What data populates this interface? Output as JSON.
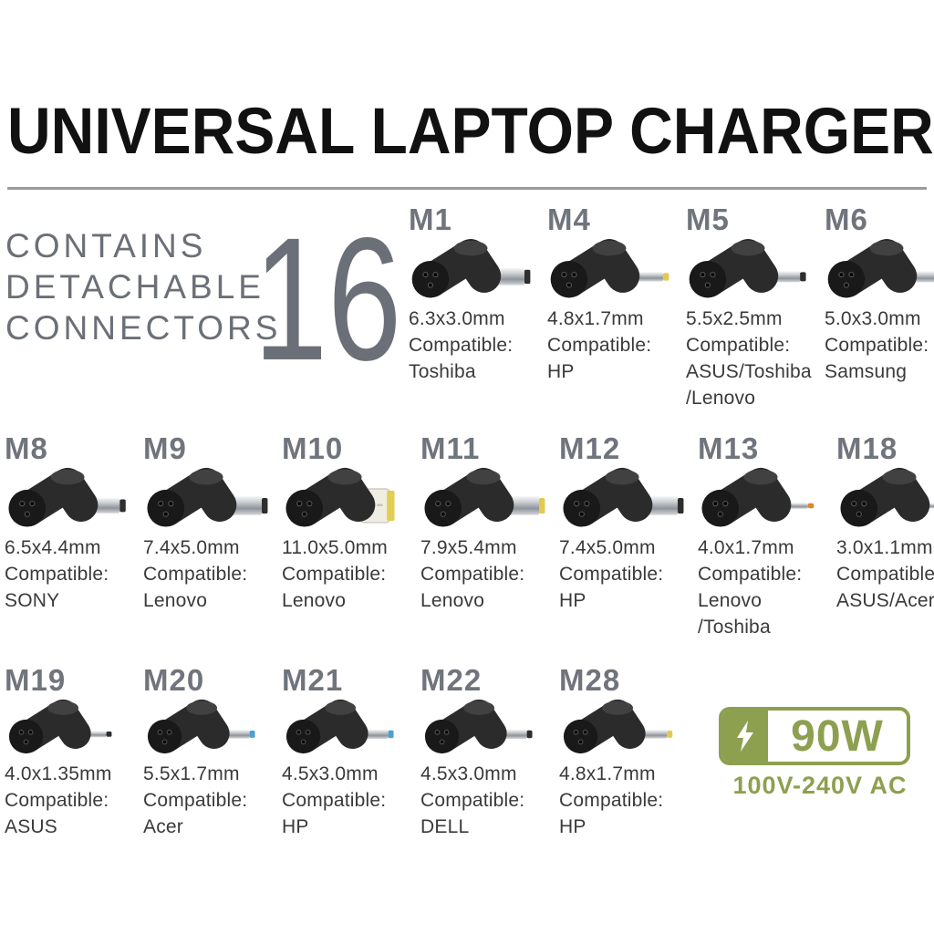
{
  "title": "UNIVERSAL LAPTOP CHARGER",
  "intro": {
    "lines": [
      "CONTAINS",
      "DETACHABLE",
      "CONNECTORS"
    ],
    "count": "16"
  },
  "compat_label": "Compatible:",
  "connectors": [
    {
      "row": 1,
      "model": "M1",
      "size": "6.3x3.0mm",
      "brands": [
        "Toshiba"
      ],
      "plug": {
        "style": "barrel",
        "thickness": 20,
        "length": 46,
        "tip": "#2E2E2E"
      }
    },
    {
      "row": 1,
      "model": "M4",
      "size": "4.8x1.7mm",
      "brands": [
        "HP"
      ],
      "plug": {
        "style": "barrel",
        "thickness": 11,
        "length": 46,
        "tip": "#E5C94E"
      }
    },
    {
      "row": 1,
      "model": "M5",
      "size": "5.5x2.5mm",
      "brands": [
        "ASUS/Toshiba",
        "/Lenovo"
      ],
      "plug": {
        "style": "barrel",
        "thickness": 13,
        "length": 44,
        "tip": "#2E2E2E"
      }
    },
    {
      "row": 1,
      "model": "M6",
      "size": "5.0x3.0mm",
      "brands": [
        "Samsung"
      ],
      "plug": {
        "style": "barrel",
        "thickness": 13,
        "length": 44,
        "tip": "#7B52B8"
      }
    },
    {
      "row": 2,
      "model": "M8",
      "size": "6.5x4.4mm",
      "brands": [
        "SONY"
      ],
      "plug": {
        "style": "barrel",
        "thickness": 18,
        "length": 44,
        "tip": "#2E2E2E"
      }
    },
    {
      "row": 2,
      "model": "M9",
      "size": "7.4x5.0mm",
      "brands": [
        "Lenovo"
      ],
      "plug": {
        "style": "barrel",
        "thickness": 22,
        "length": 48,
        "tip": "#2E2E2E"
      }
    },
    {
      "row": 2,
      "model": "M10",
      "size": "11.0x5.0mm",
      "brands": [
        "Lenovo"
      ],
      "plug": {
        "style": "slim"
      }
    },
    {
      "row": 2,
      "model": "M11",
      "size": "7.9x5.4mm",
      "brands": [
        "Lenovo"
      ],
      "plug": {
        "style": "barrel",
        "thickness": 22,
        "length": 48,
        "tip": "#E5C94E"
      }
    },
    {
      "row": 2,
      "model": "M12",
      "size": "7.4x5.0mm",
      "brands": [
        "HP"
      ],
      "plug": {
        "style": "barrel",
        "thickness": 22,
        "length": 48,
        "tip": "#2E2E2E"
      }
    },
    {
      "row": 2,
      "model": "M13",
      "size": "4.0x1.7mm",
      "brands": [
        "Lenovo",
        "/Toshiba"
      ],
      "plug": {
        "style": "barrel",
        "thickness": 7,
        "length": 38,
        "tip": "#E0862D"
      }
    },
    {
      "row": 2,
      "model": "M18",
      "size": "3.0x1.1mm",
      "brands": [
        "ASUS/Acer"
      ],
      "plug": {
        "style": "barrel",
        "thickness": 6,
        "length": 34,
        "tip": "#C9CCD0"
      }
    },
    {
      "row": 3,
      "model": "M19",
      "size": "4.0x1.35mm",
      "brands": [
        "ASUS"
      ],
      "plug": {
        "style": "barrel",
        "thickness": 8,
        "length": 38,
        "tip": "#2E2E2E"
      }
    },
    {
      "row": 3,
      "model": "M20",
      "size": "5.5x1.7mm",
      "brands": [
        "Acer"
      ],
      "plug": {
        "style": "barrel",
        "thickness": 11,
        "length": 44,
        "tip": "#4D9FD6"
      }
    },
    {
      "row": 3,
      "model": "M21",
      "size": "4.5x3.0mm",
      "brands": [
        "HP"
      ],
      "plug": {
        "style": "barrel",
        "thickness": 12,
        "length": 44,
        "tip": "#4D9FD6"
      }
    },
    {
      "row": 3,
      "model": "M22",
      "size": "4.5x3.0mm",
      "brands": [
        "DELL"
      ],
      "plug": {
        "style": "barrel",
        "thickness": 12,
        "length": 44,
        "tip": "#2E2E2E"
      }
    },
    {
      "row": 3,
      "model": "M28",
      "size": "4.8x1.7mm",
      "brands": [
        "HP"
      ],
      "plug": {
        "style": "barrel",
        "thickness": 11,
        "length": 46,
        "tip": "#E5C94E"
      }
    }
  ],
  "badge": {
    "watts": "90W",
    "voltage": "100V-240V AC",
    "icon": "lightning-bolt-icon"
  },
  "colors": {
    "accent_green": "#8CA04F",
    "heading_black": "#111111",
    "gray_text": "#6B6F77",
    "model_gray": "#70747C",
    "spec_text": "#3A3A3A",
    "divider_gray": "#9B9B9B",
    "plug_body": "#2B2B2B",
    "tip_yellow": "#E5C94E",
    "tip_purple": "#7B52B8",
    "tip_blue": "#4D9FD6",
    "tip_orange": "#E0862D",
    "slim_tip_body": "#EFEDE4",
    "slim_tip_edge": "#E2CE52"
  }
}
